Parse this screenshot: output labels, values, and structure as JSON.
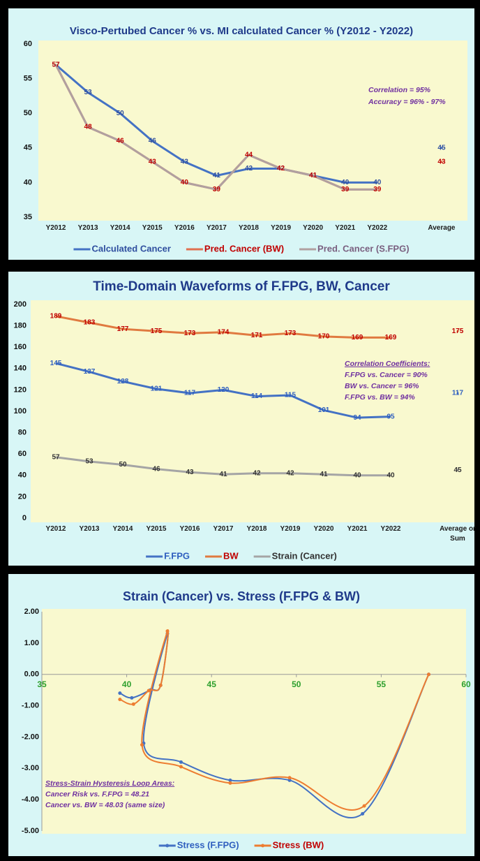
{
  "chart_data": [
    {
      "type": "line",
      "title": "Visco-Pertubed Cancer % vs. MI calculated Cancer %  (Y2012 - Y2022)",
      "categories": [
        "Y2012",
        "Y2013",
        "Y2014",
        "Y2015",
        "Y2016",
        "Y2017",
        "Y2018",
        "Y2019",
        "Y2020",
        "Y2021",
        "Y2022",
        null,
        "Average"
      ],
      "ylim": [
        35,
        60
      ],
      "yticks": [
        35,
        40,
        45,
        50,
        55,
        60
      ],
      "grid": false,
      "legend": "bottom",
      "annotations": [
        "Correlation = 95%",
        "Accuracy = 96% - 97%"
      ],
      "series": [
        {
          "name": "Calculated Cancer",
          "color": "#4472c4",
          "text_color": "#2f4f9f",
          "data_labels": true,
          "values": [
            57,
            53,
            50,
            46,
            43,
            41,
            42,
            42,
            41,
            40,
            40,
            null,
            45
          ]
        },
        {
          "name": "Pred. Cancer (BW)",
          "color": "#e07050",
          "text_color": "#c00000",
          "data_labels": true,
          "values": [
            57,
            48,
            46,
            43,
            40,
            39,
            44,
            42,
            41,
            39,
            39,
            null,
            43
          ]
        },
        {
          "name": "Pred. Cancer (S.FPG)",
          "color": "#b0a0a0",
          "text_color": "#7a6080",
          "data_labels": false,
          "values": [
            57,
            48,
            46,
            43,
            40,
            39,
            44,
            42,
            41,
            39,
            39,
            null,
            null
          ]
        }
      ]
    },
    {
      "type": "line",
      "title": "Time-Domain Waveforms of F.FPG, BW, Cancer",
      "categories": [
        "Y2012",
        "Y2013",
        "Y2014",
        "Y2015",
        "Y2016",
        "Y2017",
        "Y2018",
        "Y2019",
        "Y2020",
        "Y2021",
        "Y2022",
        null,
        "Average or Sum"
      ],
      "ylim": [
        0,
        200
      ],
      "yticks": [
        0,
        20,
        40,
        60,
        80,
        100,
        120,
        140,
        160,
        180,
        200
      ],
      "grid": false,
      "legend": "bottom",
      "annotations": [
        "Correlation Coefficients:",
        "F.FPG vs. Cancer = 90%",
        "BW vs. Cancer = 96%",
        "F.FPG vs. BW = 94%"
      ],
      "series": [
        {
          "name": "F.FPG",
          "color": "#4472c4",
          "text_color": "#2f5fbf",
          "data_labels": true,
          "values": [
            145,
            137,
            128,
            121,
            117,
            120,
            114,
            115,
            101,
            94,
            95,
            null,
            117
          ]
        },
        {
          "name": "BW",
          "color": "#e07a40",
          "text_color": "#c00000",
          "data_labels": true,
          "values": [
            189,
            183,
            177,
            175,
            173,
            174,
            171,
            173,
            170,
            169,
            169,
            null,
            175
          ]
        },
        {
          "name": "Strain (Cancer)",
          "color": "#a5a5a5",
          "text_color": "#333333",
          "data_labels": true,
          "values": [
            57,
            53,
            50,
            46,
            43,
            41,
            42,
            42,
            41,
            40,
            40,
            null,
            45
          ]
        }
      ]
    },
    {
      "type": "scatter",
      "title": "Strain (Cancer) vs. Stress (F.FPG & BW)",
      "xlim": [
        35,
        60
      ],
      "xticks": [
        35,
        40,
        45,
        50,
        55,
        60
      ],
      "ylim": [
        -5,
        2
      ],
      "yticks": [
        {
          "value": -5,
          "label": "-5.00"
        },
        {
          "value": -4,
          "label": "-4.00"
        },
        {
          "value": -3,
          "label": "-3.00"
        },
        {
          "value": -2,
          "label": "-2.00"
        },
        {
          "value": -1,
          "label": "-1.00"
        },
        {
          "value": 0,
          "label": "0.00"
        },
        {
          "value": 1,
          "label": "1.00"
        },
        {
          "value": 2,
          "label": "2.00"
        }
      ],
      "grid": false,
      "smooth": true,
      "legend": "bottom",
      "annotations": [
        "Stress-Strain Hysteresis Loop Areas:",
        "Cancer Risk vs. F.FPG = 48.21",
        "Cancer vs. BW = 48.03 (same size)"
      ],
      "series": [
        {
          "name": "Stress (F.FPG)",
          "color": "#4472c4",
          "text_color": "#2f5fbf",
          "x": [
            57.8,
            53.9,
            49.6,
            46.1,
            43.2,
            41.0,
            42.4,
            42.0,
            41.4,
            40.3,
            39.6
          ],
          "y": [
            0,
            -4.45,
            -3.38,
            -3.38,
            -2.8,
            -2.2,
            1.3,
            -0.35,
            -0.5,
            -0.75,
            -0.6
          ]
        },
        {
          "name": "Stress (BW)",
          "color": "#ed7d31",
          "text_color": "#c00000",
          "x": [
            57.8,
            54.0,
            49.6,
            46.1,
            43.2,
            40.9,
            42.4,
            42.0,
            41.3,
            40.4,
            39.6
          ],
          "y": [
            0,
            -4.2,
            -3.3,
            -3.47,
            -2.95,
            -2.25,
            1.38,
            -0.35,
            -0.52,
            -0.95,
            -0.8
          ]
        }
      ]
    }
  ]
}
